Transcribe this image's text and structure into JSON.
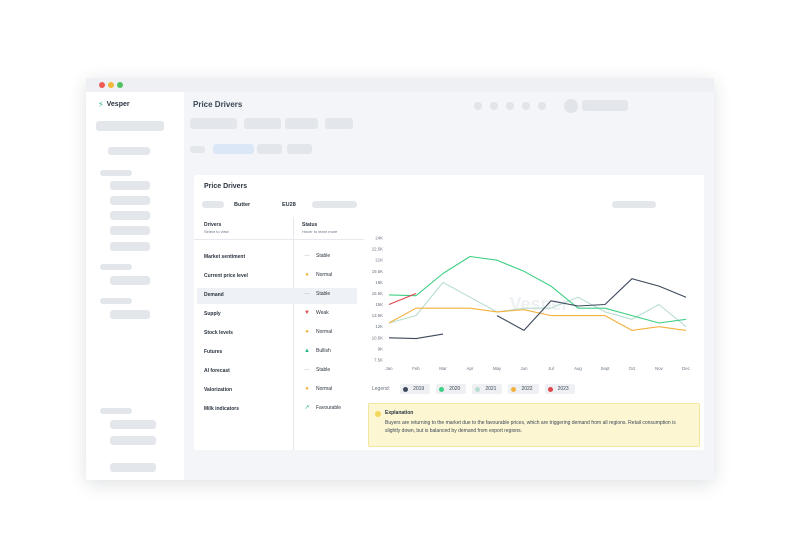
{
  "app": {
    "name": "Vesper",
    "page_title": "Price Drivers"
  },
  "card": {
    "title": "Price Drivers",
    "product": "Butter",
    "region": "EU28",
    "drivers_header": "Drivers",
    "drivers_sub": "Select to view",
    "status_header": "Status",
    "status_sub": "Hover to learn more"
  },
  "drivers": [
    {
      "label": "Market sentiment",
      "status": "Stable",
      "icon": "dash-icon",
      "color": "#a8b2bd"
    },
    {
      "label": "Current price level",
      "status": "Normal",
      "icon": "circle-icon",
      "color": "#f2b441"
    },
    {
      "label": "Demand",
      "status": "Stable",
      "icon": "dash-icon",
      "color": "#a8b2bd"
    },
    {
      "label": "Supply",
      "status": "Weak",
      "icon": "bear-icon",
      "color": "#e0474c"
    },
    {
      "label": "Stock levels",
      "status": "Normal",
      "icon": "circle-icon",
      "color": "#f2b441"
    },
    {
      "label": "Futures",
      "status": "Bullish",
      "icon": "bull-icon",
      "color": "#2bb58a"
    },
    {
      "label": "AI forecast",
      "status": "Stable",
      "icon": "dash-icon",
      "color": "#a8b2bd"
    },
    {
      "label": "Valorization",
      "status": "Normal",
      "icon": "circle-icon",
      "color": "#f2b441"
    },
    {
      "label": "Milk indicators",
      "status": "Favourable",
      "icon": "trend-up-icon",
      "color": "#2bb58a"
    }
  ],
  "chart_data": {
    "type": "line",
    "categories": [
      "Jan",
      "Feb",
      "Mar",
      "Apr",
      "May",
      "Jun",
      "Jul",
      "Aug",
      "Sept",
      "Oct",
      "Nov",
      "Dec"
    ],
    "y_ticks": [
      "7.5K",
      "9K",
      "10.5K",
      "12K",
      "13.5K",
      "15K",
      "16.5K",
      "18K",
      "19.5K",
      "21K",
      "22.5K",
      "24K"
    ],
    "ylim": [
      7.5,
      24
    ],
    "grid": false,
    "legend_position": "bottom-left",
    "legend_label": "Legend:",
    "watermark": "Vesper",
    "series": [
      {
        "name": "2019",
        "color": "#3d4a5c",
        "values": [
          10.5,
          10.4,
          11.0,
          null,
          13.5,
          11.5,
          15.5,
          14.8,
          15.0,
          18.5,
          17.5,
          16.0
        ]
      },
      {
        "name": "2020",
        "color": "#3fcf85",
        "values": [
          16.3,
          16.2,
          19.2,
          21.5,
          21.0,
          19.5,
          17.5,
          14.5,
          14.5,
          13.5,
          12.5,
          13.0
        ]
      },
      {
        "name": "2021",
        "color": "#b9ddd0",
        "values": [
          12.5,
          13.5,
          18.0,
          16.0,
          14.0,
          14.5,
          14.5,
          16.0,
          14.0,
          13.0,
          15.0,
          12.0
        ]
      },
      {
        "name": "2022",
        "color": "#f3b13f",
        "values": [
          12.5,
          14.5,
          14.5,
          14.5,
          14.0,
          14.3,
          13.5,
          13.5,
          13.5,
          11.5,
          12.0,
          11.5
        ]
      },
      {
        "name": "2023",
        "color": "#e0474c",
        "values": [
          15.0,
          16.5,
          null,
          null,
          null,
          null,
          null,
          null,
          null,
          null,
          null,
          null
        ]
      }
    ]
  },
  "explanation": {
    "title": "Explanation",
    "text": "Buyers are returning to the market due to the favourable prices, which are triggering demand from all regions. Retail consumption is slightly down, but is balanced by demand from export regions."
  }
}
